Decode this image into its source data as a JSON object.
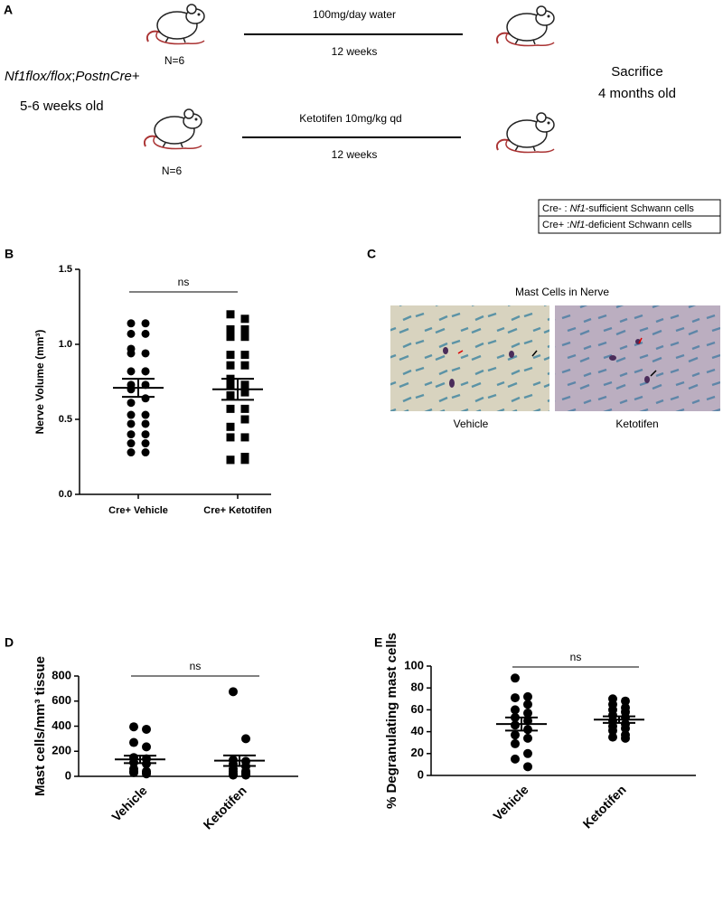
{
  "panel_a": {
    "label": "A",
    "top_treatment": "100mg/day water",
    "top_duration": "12 weeks",
    "top_n": "N=6",
    "genotype": [
      "Nf1flox/flox",
      ";",
      "PostnCre",
      "+"
    ],
    "age": "5-6 weeks old",
    "bottom_treatment": "Ketotifen 10mg/kg qd",
    "bottom_duration": "12 weeks",
    "bottom_n": "N=6",
    "endpoint": [
      "Sacrifice",
      "4 months old"
    ],
    "legend": [
      [
        "Cre- : ",
        "Nf1",
        "-sufficient Schwann cells"
      ],
      [
        "Cre+ :",
        "Nf1",
        "-deficient Schwann cells"
      ]
    ]
  },
  "panel_c": {
    "label": "C",
    "title": "Mast Cells in Nerve",
    "images": [
      "Vehicle",
      "Ketotifen"
    ]
  },
  "chart_data": [
    {
      "type": "scatter",
      "label": "B",
      "ylabel": "Nerve Volume (mm³)",
      "categories": [
        "Cre+ Vehicle",
        "Cre+ Ketotifen"
      ],
      "ylim": [
        0,
        1.5
      ],
      "yticks": [
        {
          "value": 0,
          "label": "0.0"
        },
        0.5,
        {
          "value": 1,
          "label": "1.0"
        },
        1.5
      ],
      "annotation": "ns",
      "series": [
        {
          "marker": "circle",
          "color": "#000000",
          "mean": 0.71,
          "sem": 0.06,
          "values": [
            1.14,
            1.14,
            1.07,
            1.07,
            0.97,
            0.94,
            0.94,
            0.82,
            0.82,
            0.82,
            0.73,
            0.73,
            0.7,
            0.64,
            0.61,
            0.53,
            0.53,
            0.47,
            0.47,
            0.4,
            0.4,
            0.34,
            0.34,
            0.28,
            0.28
          ]
        },
        {
          "marker": "square",
          "color": "#000000",
          "mean": 0.7,
          "sem": 0.07,
          "values": [
            1.2,
            1.17,
            1.1,
            1.1,
            1.05,
            1.05,
            0.93,
            0.93,
            0.86,
            0.86,
            0.77,
            0.73,
            0.73,
            0.68,
            0.66,
            0.57,
            0.57,
            0.5,
            0.45,
            0.38,
            0.38,
            0.25,
            0.23,
            0.23,
            0.23
          ]
        }
      ]
    },
    {
      "type": "scatter",
      "label": "D",
      "ylabel": "Mast cells/mm³ tissue",
      "categories": [
        "Vehicle",
        "Ketotifen"
      ],
      "ylim": [
        0,
        800
      ],
      "yticks": [
        0,
        200,
        400,
        600,
        800
      ],
      "annotation": "ns",
      "series": [
        {
          "marker": "circle",
          "color": "#000000",
          "mean": 135,
          "sem": 30,
          "values": [
            395,
            375,
            270,
            235,
            150,
            140,
            110,
            100,
            60,
            40,
            40,
            30,
            30,
            20
          ]
        },
        {
          "marker": "circle",
          "color": "#000000",
          "mean": 125,
          "sem": 42,
          "values": [
            675,
            300,
            130,
            120,
            100,
            80,
            60,
            40,
            40,
            30,
            20,
            20,
            10,
            10
          ]
        }
      ]
    },
    {
      "type": "scatter",
      "label": "E",
      "ylabel": "% Degranulating mast cells",
      "categories": [
        "Vehicle",
        "Ketotifen"
      ],
      "ylim": [
        0,
        100
      ],
      "yticks": [
        0,
        20,
        40,
        60,
        80,
        100
      ],
      "annotation": "ns",
      "series": [
        {
          "marker": "circle",
          "color": "#000000",
          "mean": 47,
          "sem": 6,
          "values": [
            89,
            72,
            71,
            65,
            60,
            57,
            53,
            50,
            46,
            42,
            37,
            34,
            29,
            20,
            15,
            8
          ]
        },
        {
          "marker": "circle",
          "color": "#000000",
          "mean": 51,
          "sem": 3,
          "values": [
            70,
            68,
            65,
            62,
            60,
            58,
            55,
            53,
            50,
            47,
            45,
            43,
            41,
            37,
            35,
            34
          ]
        }
      ]
    }
  ]
}
